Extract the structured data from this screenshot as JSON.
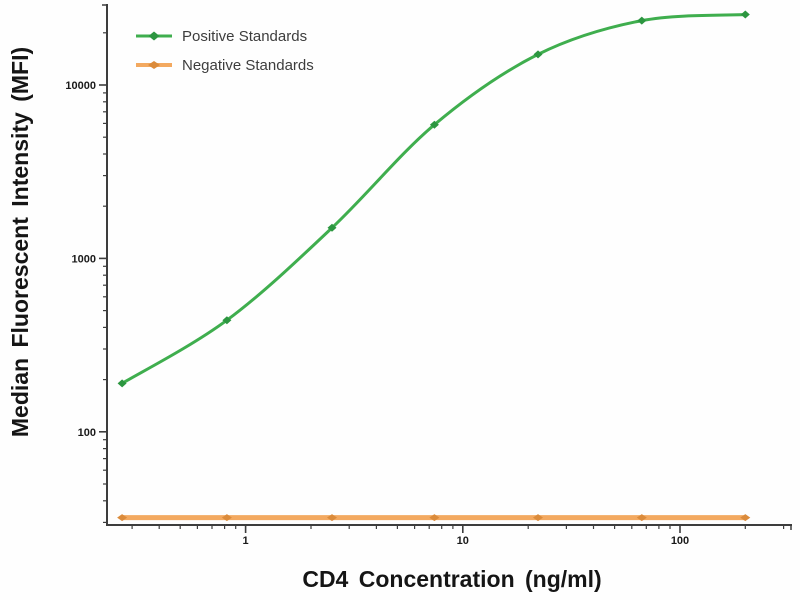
{
  "chart_data": {
    "type": "line",
    "x_scale": "log",
    "y_scale": "log",
    "xlabel": "CD4 Concentration (ng/ml)",
    "ylabel": "Median Fluorescent Intensity (MFI)",
    "xlim": [
      0.23,
      328
    ],
    "ylim": [
      29,
      29300
    ],
    "x_major_ticks": [
      1,
      10,
      100
    ],
    "x_major_tick_labels": [
      "1",
      "10",
      "100"
    ],
    "y_major_ticks": [
      100,
      1000,
      10000
    ],
    "y_major_tick_labels": [
      "100",
      "1000",
      "10000"
    ],
    "x": [
      0.27,
      0.82,
      2.5,
      7.4,
      22.2,
      66.7,
      200
    ],
    "series": [
      {
        "name": "Positive Standards",
        "values": [
          190,
          440,
          1500,
          5900,
          15000,
          23500,
          25500
        ],
        "line_color": "#3fae4e",
        "marker_color": "#2c9640",
        "line_width": 3,
        "marker_w": 9,
        "marker_h": 8,
        "smooth": true
      },
      {
        "name": "Negative Standards",
        "values": [
          32,
          32,
          32,
          32,
          32,
          32,
          32
        ],
        "line_color": "#f3a960",
        "marker_color": "#db8b3b",
        "line_width": 5,
        "marker_w": 10,
        "marker_h": 7,
        "smooth": false
      }
    ],
    "legend_position": "top-left",
    "grid": false,
    "axis_color": "#3d3d3d",
    "tick_label_color": "#1a1a1a"
  }
}
